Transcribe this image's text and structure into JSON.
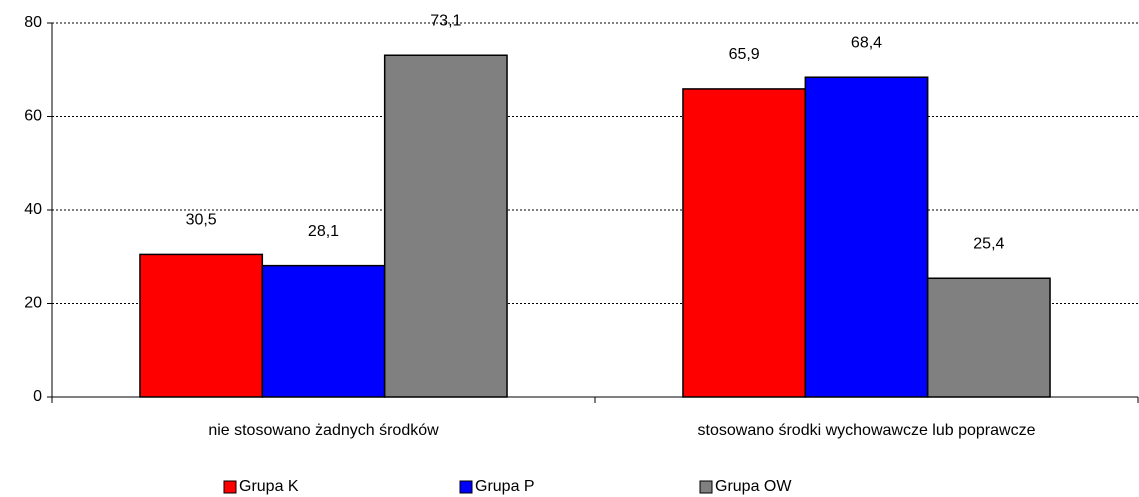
{
  "chart_data": {
    "type": "bar",
    "categories": [
      "nie stosowano żadnych środków",
      "stosowano środki wychowawcze lub poprawcze"
    ],
    "series": [
      {
        "name": "Grupa K",
        "color": "#ff0000",
        "values": [
          30.5,
          65.9
        ],
        "value_labels": [
          "30,5",
          "65,9"
        ]
      },
      {
        "name": "Grupa P",
        "color": "#0000ff",
        "values": [
          28.1,
          68.4
        ],
        "value_labels": [
          "28,1",
          "68,4"
        ]
      },
      {
        "name": "Grupa OW",
        "color": "#808080",
        "values": [
          73.1,
          25.4
        ],
        "value_labels": [
          "73,1",
          "25,4"
        ]
      }
    ],
    "ylim": [
      0,
      80
    ],
    "yticks": [
      0,
      20,
      40,
      60,
      80
    ],
    "grid": true,
    "legend": "bottom"
  }
}
